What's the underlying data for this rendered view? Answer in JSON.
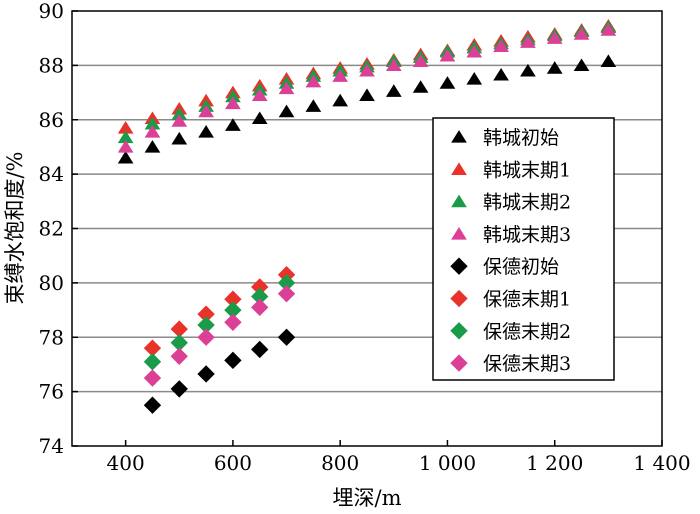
{
  "chart_data": {
    "type": "scatter",
    "title": "",
    "xlabel": "埋深/m",
    "ylabel": "束缚水饱和度/%",
    "xlim": [
      300,
      1400
    ],
    "ylim": [
      74,
      90
    ],
    "xticks": [
      400,
      600,
      800,
      1000,
      1200,
      1400
    ],
    "xtick_labels": [
      "400",
      "600",
      "800",
      "1 000",
      "1 200",
      "1 400"
    ],
    "yticks": [
      74,
      76,
      78,
      80,
      82,
      84,
      86,
      88,
      90
    ],
    "ytick_labels": [
      "74",
      "76",
      "78",
      "80",
      "82",
      "84",
      "86",
      "88",
      "90"
    ],
    "grid": "horizontal",
    "legend_position": "right",
    "series": [
      {
        "name": "韩城初始",
        "marker": "triangle",
        "color": "#000000",
        "x": [
          400,
          450,
          500,
          550,
          600,
          650,
          700,
          750,
          800,
          850,
          900,
          950,
          1000,
          1050,
          1100,
          1150,
          1200,
          1250,
          1300
        ],
        "y": [
          84.6,
          85.0,
          85.3,
          85.55,
          85.8,
          86.05,
          86.3,
          86.5,
          86.7,
          86.9,
          87.05,
          87.2,
          87.35,
          87.5,
          87.65,
          87.8,
          87.9,
          88.0,
          88.15
        ]
      },
      {
        "name": "韩城末期1",
        "marker": "triangle",
        "color": "#e8322a",
        "x": [
          400,
          450,
          500,
          550,
          600,
          650,
          700,
          750,
          800,
          850,
          900,
          950,
          1000,
          1050,
          1100,
          1150,
          1200,
          1250,
          1300
        ],
        "y": [
          85.7,
          86.05,
          86.4,
          86.7,
          87.0,
          87.25,
          87.5,
          87.7,
          87.9,
          88.05,
          88.2,
          88.4,
          88.55,
          88.75,
          88.9,
          89.05,
          89.15,
          89.3,
          89.45
        ]
      },
      {
        "name": "韩城末期2",
        "marker": "triangle",
        "color": "#1a9b4a",
        "x": [
          400,
          450,
          500,
          550,
          600,
          650,
          700,
          750,
          800,
          850,
          900,
          950,
          1000,
          1050,
          1100,
          1150,
          1200,
          1250,
          1300
        ],
        "y": [
          85.35,
          85.85,
          86.2,
          86.5,
          86.85,
          87.1,
          87.35,
          87.6,
          87.8,
          87.95,
          88.15,
          88.3,
          88.5,
          88.65,
          88.8,
          88.95,
          89.1,
          89.25,
          89.4
        ]
      },
      {
        "name": "韩城末期3",
        "marker": "triangle",
        "color": "#dc3f96",
        "x": [
          400,
          450,
          500,
          550,
          600,
          650,
          700,
          750,
          800,
          850,
          900,
          950,
          1000,
          1050,
          1100,
          1150,
          1200,
          1250,
          1300
        ],
        "y": [
          85.0,
          85.55,
          85.95,
          86.3,
          86.6,
          86.9,
          87.15,
          87.4,
          87.6,
          87.8,
          88.0,
          88.15,
          88.35,
          88.5,
          88.7,
          88.85,
          89.0,
          89.15,
          89.3
        ]
      },
      {
        "name": "保德初始",
        "marker": "diamond",
        "color": "#000000",
        "x": [
          450,
          500,
          550,
          600,
          650,
          700
        ],
        "y": [
          75.5,
          76.1,
          76.65,
          77.15,
          77.55,
          78.0
        ]
      },
      {
        "name": "保德末期1",
        "marker": "diamond",
        "color": "#e8322a",
        "x": [
          450,
          500,
          550,
          600,
          650,
          700
        ],
        "y": [
          77.6,
          78.3,
          78.85,
          79.4,
          79.85,
          80.3
        ]
      },
      {
        "name": "保德末期2",
        "marker": "diamond",
        "color": "#1a9b4a",
        "x": [
          450,
          500,
          550,
          600,
          650,
          700
        ],
        "y": [
          77.1,
          77.8,
          78.45,
          79.0,
          79.5,
          80.0
        ]
      },
      {
        "name": "保德末期3",
        "marker": "diamond",
        "color": "#dc3f96",
        "x": [
          450,
          500,
          550,
          600,
          650,
          700
        ],
        "y": [
          76.5,
          77.3,
          78.0,
          78.55,
          79.1,
          79.6
        ]
      }
    ]
  }
}
